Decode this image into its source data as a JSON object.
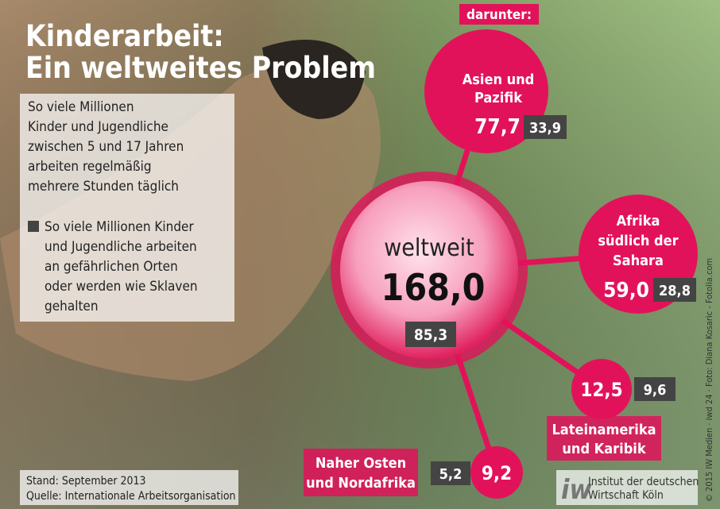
{
  "title": [
    "Kinderarbeit:",
    "Ein weltweites Problem"
  ],
  "legend": {
    "main": [
      "So viele Millionen",
      "Kinder und Jugendliche",
      "zwischen 5 und 17 Jahren",
      "arbeiten regelmäßig",
      "mehrere Stunden täglich"
    ],
    "hazard": [
      "So viele Millionen Kinder",
      "und Jugendliche arbeiten",
      "an gefährlichen Orten",
      "oder werden wie Sklaven",
      "gehalten"
    ]
  },
  "subset_label": "darunter:",
  "world": {
    "label": "weltweit",
    "total": "168,0",
    "hazardous": "85,3"
  },
  "regions": [
    {
      "name": [
        "Asien und",
        "Pazifik"
      ],
      "total": "77,7",
      "hazardous": "33,9"
    },
    {
      "name": [
        "Afrika",
        "südlich der",
        "Sahara"
      ],
      "total": "59,0",
      "hazardous": "28,8"
    },
    {
      "name": [
        "Lateinamerika",
        "und Karibik"
      ],
      "total": "12,5",
      "hazardous": "9,6"
    },
    {
      "name": [
        "Naher Osten",
        "und Nordafrika"
      ],
      "total": "9,2",
      "hazardous": "5,2"
    }
  ],
  "source": [
    "Stand: September 2013",
    "Quelle: Internationale Arbeitsorganisation"
  ],
  "credit": "© 2015 IW Medien · iwd 24 · Foto: Diana Kosaric - Fotolia.com",
  "logo": [
    "Institut der deutschen",
    "Wirtschaft Köln"
  ]
}
